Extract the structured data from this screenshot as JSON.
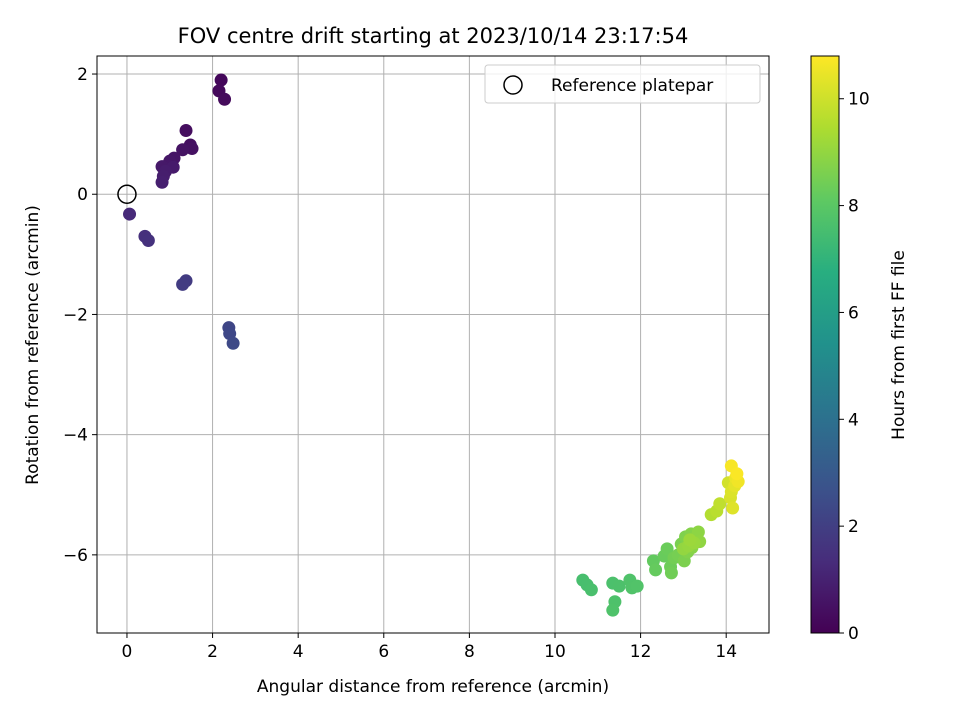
{
  "chart_data": {
    "type": "scatter",
    "title": "FOV centre drift starting at 2023/10/14 23:17:54",
    "xlabel": "Angular distance from reference (arcmin)",
    "ylabel": "Rotation from reference (arcmin)",
    "xlim": [
      -0.7,
      15.0
    ],
    "ylim": [
      -7.3,
      2.3
    ],
    "x_ticks": [
      0,
      2,
      4,
      6,
      8,
      10,
      12,
      14
    ],
    "y_ticks": [
      2,
      0,
      -2,
      -4,
      -6
    ],
    "grid": true,
    "legend": {
      "location": "top-right",
      "entries": [
        "Reference platepar"
      ]
    },
    "reference_point": {
      "x": 0,
      "y": 0,
      "label": "Reference platepar"
    },
    "colorbar": {
      "label": "Hours from first FF file",
      "colormap": "viridis",
      "range": [
        0,
        10.8
      ],
      "ticks": [
        0,
        2,
        4,
        6,
        8,
        10
      ]
    },
    "points": [
      {
        "x": 2.2,
        "y": 1.9,
        "h": 0.2
      },
      {
        "x": 2.15,
        "y": 1.72,
        "h": 0.25
      },
      {
        "x": 2.28,
        "y": 1.58,
        "h": 0.3
      },
      {
        "x": 1.38,
        "y": 1.06,
        "h": 0.4
      },
      {
        "x": 1.48,
        "y": 0.82,
        "h": 0.45
      },
      {
        "x": 1.52,
        "y": 0.76,
        "h": 0.5
      },
      {
        "x": 1.3,
        "y": 0.74,
        "h": 0.55
      },
      {
        "x": 1.1,
        "y": 0.6,
        "h": 0.6
      },
      {
        "x": 1.0,
        "y": 0.55,
        "h": 0.65
      },
      {
        "x": 0.95,
        "y": 0.48,
        "h": 0.7
      },
      {
        "x": 0.82,
        "y": 0.46,
        "h": 0.75
      },
      {
        "x": 1.08,
        "y": 0.45,
        "h": 0.8
      },
      {
        "x": 0.9,
        "y": 0.38,
        "h": 0.85
      },
      {
        "x": 0.85,
        "y": 0.3,
        "h": 0.9
      },
      {
        "x": 0.82,
        "y": 0.2,
        "h": 0.95
      },
      {
        "x": 0.06,
        "y": -0.33,
        "h": 1.3
      },
      {
        "x": 0.42,
        "y": -0.7,
        "h": 1.5
      },
      {
        "x": 0.5,
        "y": -0.77,
        "h": 1.55
      },
      {
        "x": 1.38,
        "y": -1.44,
        "h": 1.9
      },
      {
        "x": 1.3,
        "y": -1.5,
        "h": 1.95
      },
      {
        "x": 2.38,
        "y": -2.22,
        "h": 2.3
      },
      {
        "x": 2.4,
        "y": -2.32,
        "h": 2.35
      },
      {
        "x": 2.48,
        "y": -2.48,
        "h": 2.4
      },
      {
        "x": 10.65,
        "y": -6.42,
        "h": 7.6
      },
      {
        "x": 10.75,
        "y": -6.5,
        "h": 7.62
      },
      {
        "x": 10.85,
        "y": -6.58,
        "h": 7.65
      },
      {
        "x": 11.35,
        "y": -6.47,
        "h": 7.7
      },
      {
        "x": 11.5,
        "y": -6.52,
        "h": 7.72
      },
      {
        "x": 11.4,
        "y": -6.78,
        "h": 7.75
      },
      {
        "x": 11.35,
        "y": -6.92,
        "h": 7.78
      },
      {
        "x": 11.75,
        "y": -6.42,
        "h": 7.8
      },
      {
        "x": 11.8,
        "y": -6.55,
        "h": 7.82
      },
      {
        "x": 11.92,
        "y": -6.52,
        "h": 7.85
      },
      {
        "x": 12.3,
        "y": -6.1,
        "h": 8.2
      },
      {
        "x": 12.35,
        "y": -6.25,
        "h": 8.25
      },
      {
        "x": 12.55,
        "y": -6.02,
        "h": 8.3
      },
      {
        "x": 12.62,
        "y": -5.9,
        "h": 8.35
      },
      {
        "x": 12.7,
        "y": -6.2,
        "h": 8.4
      },
      {
        "x": 12.72,
        "y": -6.3,
        "h": 8.45
      },
      {
        "x": 12.78,
        "y": -6.05,
        "h": 8.5
      },
      {
        "x": 12.88,
        "y": -6.0,
        "h": 8.55
      },
      {
        "x": 12.95,
        "y": -5.82,
        "h": 8.6
      },
      {
        "x": 13.02,
        "y": -6.1,
        "h": 8.65
      },
      {
        "x": 13.05,
        "y": -5.7,
        "h": 8.7
      },
      {
        "x": 13.1,
        "y": -5.95,
        "h": 8.75
      },
      {
        "x": 13.18,
        "y": -5.65,
        "h": 8.8
      },
      {
        "x": 13.2,
        "y": -5.88,
        "h": 8.85
      },
      {
        "x": 13.28,
        "y": -5.72,
        "h": 8.9
      },
      {
        "x": 13.35,
        "y": -5.62,
        "h": 8.95
      },
      {
        "x": 13.38,
        "y": -5.78,
        "h": 9.0
      },
      {
        "x": 13.0,
        "y": -5.9,
        "h": 9.05
      },
      {
        "x": 13.12,
        "y": -5.85,
        "h": 9.1
      },
      {
        "x": 13.25,
        "y": -5.8,
        "h": 9.15
      },
      {
        "x": 13.15,
        "y": -5.75,
        "h": 9.2
      },
      {
        "x": 13.65,
        "y": -5.33,
        "h": 9.6
      },
      {
        "x": 13.78,
        "y": -5.27,
        "h": 9.7
      },
      {
        "x": 13.85,
        "y": -5.15,
        "h": 9.8
      },
      {
        "x": 14.05,
        "y": -4.8,
        "h": 10.1
      },
      {
        "x": 14.1,
        "y": -5.05,
        "h": 10.2
      },
      {
        "x": 14.12,
        "y": -4.95,
        "h": 10.25
      },
      {
        "x": 14.15,
        "y": -5.22,
        "h": 10.3
      },
      {
        "x": 14.2,
        "y": -4.85,
        "h": 10.4
      },
      {
        "x": 14.22,
        "y": -4.72,
        "h": 10.5
      },
      {
        "x": 14.28,
        "y": -4.78,
        "h": 10.6
      },
      {
        "x": 14.12,
        "y": -4.52,
        "h": 10.7
      },
      {
        "x": 14.25,
        "y": -4.65,
        "h": 10.75
      }
    ]
  }
}
